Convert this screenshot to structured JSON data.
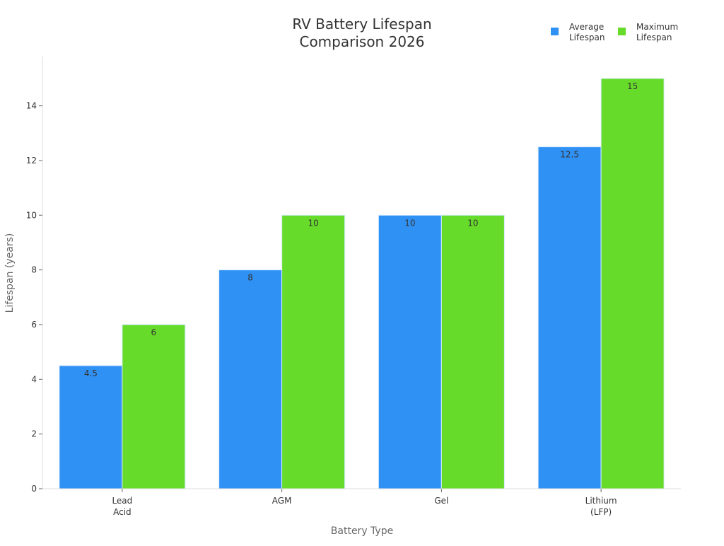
{
  "chart_data": {
    "type": "bar",
    "title": [
      "RV Battery Lifespan",
      "Comparison 2026"
    ],
    "xlabel": "Battery Type",
    "ylabel": "Lifespan (years)",
    "categories": [
      [
        "Lead",
        "Acid"
      ],
      [
        "AGM"
      ],
      [
        "Gel"
      ],
      [
        "Lithium",
        "(LFP)"
      ]
    ],
    "series": [
      {
        "name": [
          "Average",
          "Lifespan"
        ],
        "values": [
          4.5,
          8,
          10,
          12.5
        ],
        "labels": [
          "4.5",
          "8",
          "10",
          "12.5"
        ],
        "color": "#3091f5"
      },
      {
        "name": [
          "Maximum",
          "Lifespan"
        ],
        "values": [
          6,
          10,
          10,
          15
        ],
        "labels": [
          "6",
          "10",
          "10",
          "15"
        ],
        "color": "#66db29"
      }
    ],
    "ylim": [
      0,
      15.8
    ],
    "yticks": [
      0,
      2,
      4,
      6,
      8,
      10,
      12,
      14
    ],
    "grid": false,
    "legend": "top-right"
  }
}
